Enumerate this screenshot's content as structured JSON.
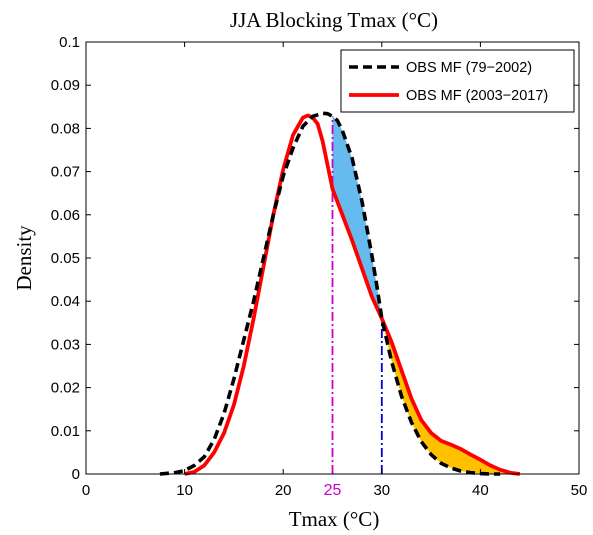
{
  "chart_data": {
    "type": "line",
    "title": "JJA Blocking Tmax (°C)",
    "xlabel": "Tmax (°C)",
    "ylabel": "Density",
    "xlim": [
      0,
      50
    ],
    "ylim": [
      0,
      0.1
    ],
    "xticks": [
      0,
      10,
      20,
      30,
      40,
      50
    ],
    "xtick_labels": [
      "0",
      "10",
      "20",
      "30",
      "40",
      "50"
    ],
    "yticks": [
      0,
      0.01,
      0.02,
      0.03,
      0.04,
      0.05,
      0.06,
      0.07,
      0.08,
      0.09,
      0.1
    ],
    "ytick_labels": [
      "0",
      "0.01",
      "0.02",
      "0.03",
      "0.04",
      "0.05",
      "0.06",
      "0.07",
      "0.08",
      "0.09",
      "0.1"
    ],
    "grid": false,
    "legend_position": "top-right",
    "series": [
      {
        "name": "OBS MF (79−2002)",
        "color": "#000000",
        "style": "dashed",
        "x": [
          7.5,
          9,
          10,
          11,
          12,
          13,
          14,
          15,
          16,
          17,
          18,
          19,
          20,
          21,
          22,
          23,
          24,
          24.5,
          25,
          25.5,
          26,
          27,
          28,
          29,
          29.5,
          30,
          31,
          32,
          33,
          34,
          35,
          36,
          37,
          38,
          39,
          40,
          41,
          42
        ],
        "y": [
          0.0,
          0.0003,
          0.0008,
          0.002,
          0.004,
          0.008,
          0.014,
          0.022,
          0.031,
          0.04,
          0.05,
          0.06,
          0.069,
          0.0755,
          0.0805,
          0.0828,
          0.0835,
          0.0834,
          0.0828,
          0.0818,
          0.0795,
          0.073,
          0.063,
          0.0505,
          0.0435,
          0.036,
          0.026,
          0.018,
          0.012,
          0.0075,
          0.0045,
          0.0025,
          0.0014,
          0.0007,
          0.0003,
          0.0001,
          0.0,
          0.0
        ]
      },
      {
        "name": "OBS MF (2003−2017)",
        "color": "#ff0000",
        "style": "solid",
        "x": [
          10,
          11,
          12,
          13,
          14,
          15,
          16,
          17,
          18,
          19,
          20,
          21,
          22,
          22.5,
          23,
          23.5,
          24,
          25,
          26,
          27,
          28,
          29,
          30,
          31,
          32,
          33,
          34,
          35,
          36,
          37,
          38,
          39,
          40,
          41,
          42,
          43,
          44
        ],
        "y": [
          0.0,
          0.0005,
          0.002,
          0.005,
          0.0095,
          0.016,
          0.025,
          0.036,
          0.048,
          0.06,
          0.0705,
          0.0785,
          0.0825,
          0.083,
          0.0825,
          0.081,
          0.077,
          0.066,
          0.06,
          0.054,
          0.0475,
          0.041,
          0.036,
          0.0305,
          0.024,
          0.0175,
          0.0125,
          0.0095,
          0.0077,
          0.0068,
          0.0058,
          0.0045,
          0.0033,
          0.002,
          0.001,
          0.0003,
          0.0
        ]
      }
    ],
    "annotations": {
      "median_marker": {
        "x": 25,
        "label": "25",
        "color": "#cc00cc",
        "style": "dash-dot"
      },
      "threshold_marker": {
        "x": 30,
        "color": "#0000dd",
        "style": "dash-dot"
      },
      "shaded_regions": [
        {
          "from_x": 25,
          "to_x": 30,
          "color": "#66bbee",
          "between": "OBS MF (79−2002) above OBS MF (2003−2017)"
        },
        {
          "from_x": 30,
          "to_x": 43,
          "color": "#ffc000",
          "between": "OBS MF (2003−2017) above OBS MF (79−2002)"
        }
      ]
    }
  }
}
